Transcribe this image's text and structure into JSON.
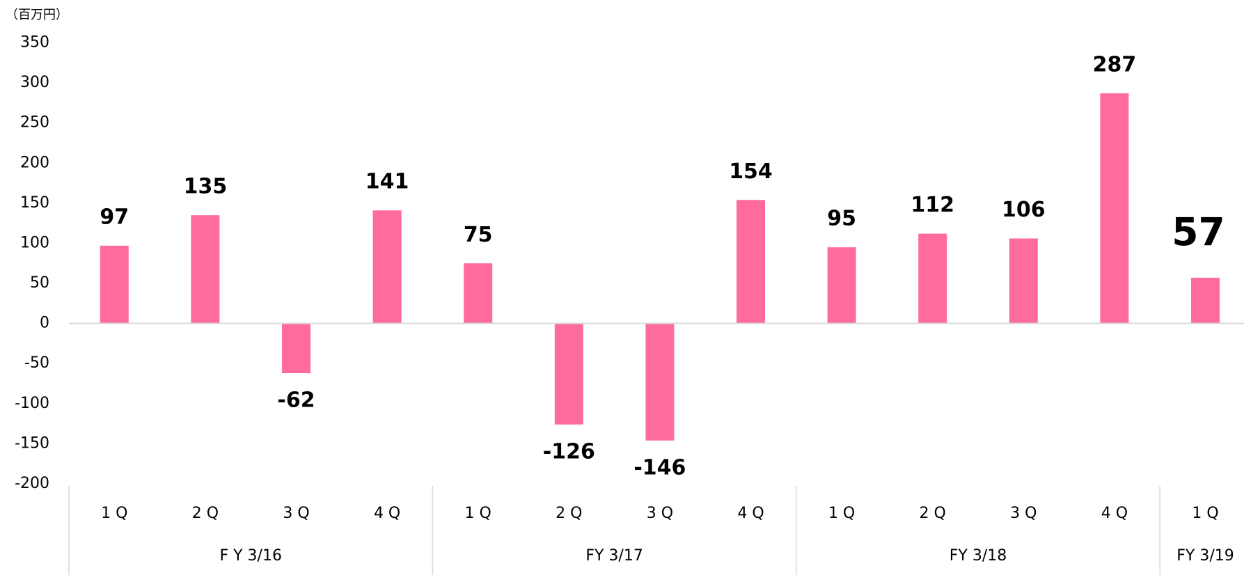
{
  "chart_data": {
    "type": "bar",
    "unit_label": "（百万円）",
    "categories": [
      "1 Q",
      "2 Q",
      "3 Q",
      "4 Q",
      "1 Q",
      "2 Q",
      "3 Q",
      "4 Q",
      "1 Q",
      "2 Q",
      "3 Q",
      "4 Q",
      "1 Q"
    ],
    "groups": [
      {
        "label": "F Y 3/16",
        "count": 4
      },
      {
        "label": "FY 3/17",
        "count": 4
      },
      {
        "label": "FY 3/18",
        "count": 4
      },
      {
        "label": "FY 3/19",
        "count": 1
      }
    ],
    "values": [
      97,
      135,
      -62,
      141,
      75,
      -126,
      -146,
      154,
      95,
      112,
      106,
      287,
      57
    ],
    "color": "#ff6b9d",
    "negative_label_color": "#ff0000",
    "ylim": [
      -200,
      350
    ],
    "yticks": [
      -200,
      -150,
      -100,
      -50,
      0,
      50,
      100,
      150,
      200,
      250,
      300,
      350
    ],
    "grid": false
  }
}
